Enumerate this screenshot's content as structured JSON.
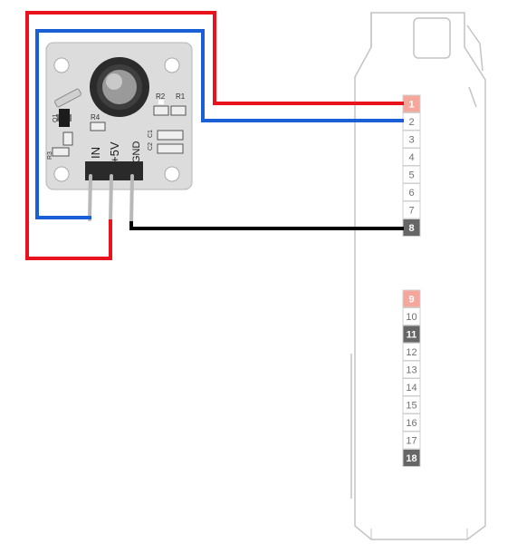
{
  "module": {
    "labels": {
      "in": "IN",
      "v5": "+5V",
      "gnd": "GND"
    },
    "components": {
      "r1": "R1",
      "r2": "R2",
      "r3": "R3",
      "r4": "R4",
      "q1": "Q1",
      "c1": "C1",
      "c2": "C2"
    }
  },
  "header": {
    "pins": [
      {
        "num": "1",
        "color": "#f4a79a",
        "text_color": "#ffffff"
      },
      {
        "num": "2",
        "color": "#ffffff",
        "text_color": "#707070"
      },
      {
        "num": "3",
        "color": "#ffffff",
        "text_color": "#707070"
      },
      {
        "num": "4",
        "color": "#ffffff",
        "text_color": "#707070"
      },
      {
        "num": "5",
        "color": "#ffffff",
        "text_color": "#707070"
      },
      {
        "num": "6",
        "color": "#ffffff",
        "text_color": "#707070"
      },
      {
        "num": "7",
        "color": "#ffffff",
        "text_color": "#707070"
      },
      {
        "num": "8",
        "color": "#666666",
        "text_color": "#ffffff"
      },
      {
        "num": "9",
        "color": "#f4a79a",
        "text_color": "#ffffff"
      },
      {
        "num": "10",
        "color": "#ffffff",
        "text_color": "#707070"
      },
      {
        "num": "11",
        "color": "#666666",
        "text_color": "#ffffff"
      },
      {
        "num": "12",
        "color": "#ffffff",
        "text_color": "#707070"
      },
      {
        "num": "13",
        "color": "#ffffff",
        "text_color": "#707070"
      },
      {
        "num": "14",
        "color": "#ffffff",
        "text_color": "#707070"
      },
      {
        "num": "15",
        "color": "#ffffff",
        "text_color": "#707070"
      },
      {
        "num": "16",
        "color": "#ffffff",
        "text_color": "#707070"
      },
      {
        "num": "17",
        "color": "#ffffff",
        "text_color": "#707070"
      },
      {
        "num": "18",
        "color": "#666666",
        "text_color": "#ffffff"
      }
    ]
  },
  "wires": [
    {
      "name": "wire-5v",
      "color": "#e8131c",
      "from": "+5V",
      "to": "1"
    },
    {
      "name": "wire-in",
      "color": "#1a5fd6",
      "from": "IN",
      "to": "2"
    },
    {
      "name": "wire-gnd",
      "color": "#000000",
      "from": "GND",
      "to": "8"
    }
  ]
}
